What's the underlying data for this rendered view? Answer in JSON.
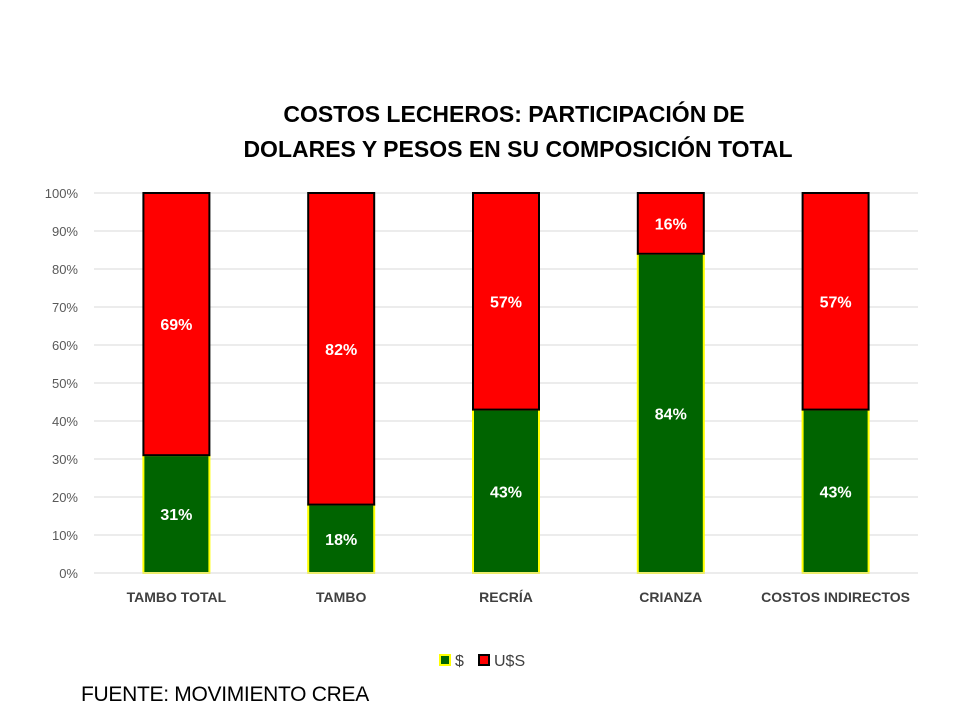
{
  "chart_data": {
    "type": "bar",
    "stacked": true,
    "title_lines": [
      "COSTOS LECHEROS: PARTICIPACIÓN DE",
      "DOLARES Y PESOS EN SU COMPOSICIÓN TOTAL"
    ],
    "categories": [
      "TAMBO TOTAL",
      "TAMBO",
      "RECRÍA",
      "CRIANZA",
      "COSTOS INDIRECTOS"
    ],
    "series": [
      {
        "name": "$",
        "values": [
          31,
          18,
          43,
          84,
          43
        ],
        "labels": [
          "31%",
          "18%",
          "43%",
          "84%",
          "43%"
        ],
        "color": "#006400",
        "border": "#ffff00"
      },
      {
        "name": "U$S",
        "values": [
          69,
          82,
          57,
          16,
          57
        ],
        "labels": [
          "69%",
          "82%",
          "57%",
          "16%",
          "57%"
        ],
        "color": "#ff0000",
        "border": "#000000"
      }
    ],
    "y_ticks": [
      "0%",
      "10%",
      "20%",
      "30%",
      "40%",
      "50%",
      "60%",
      "70%",
      "80%",
      "90%",
      "100%"
    ],
    "ylim": [
      0,
      100
    ],
    "grid": true,
    "legend": "bottom"
  },
  "source": "FUENTE: MOVIMIENTO CREA"
}
